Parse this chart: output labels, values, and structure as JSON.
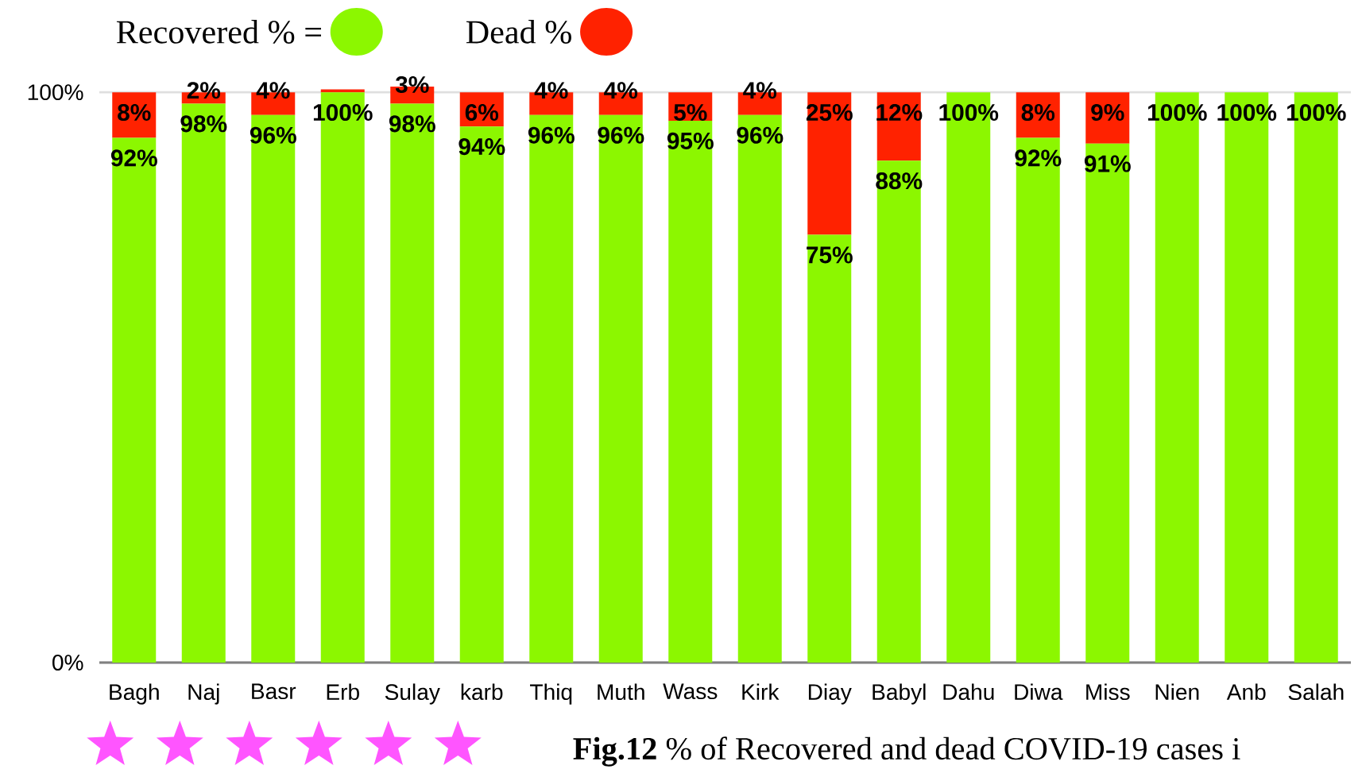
{
  "chart_data": {
    "type": "bar",
    "stacked": true,
    "categories": [
      "Bagh",
      "Naj",
      "Basr",
      "Erb",
      "Sulay",
      "karb",
      "Thiq",
      "Muth",
      "Wass",
      "Kirk",
      "Diay",
      "Babyl",
      "Dahu",
      "Diwa",
      "Miss",
      "Nien",
      "Anb",
      "Salah"
    ],
    "series": [
      {
        "name": "Recovered % =",
        "color": "#8cf700",
        "values": [
          92,
          98,
          96,
          100,
          98,
          94,
          96,
          96,
          95,
          96,
          75,
          88,
          100,
          92,
          91,
          100,
          100,
          100
        ],
        "value_labels": [
          "92%",
          "98%",
          "96%",
          "100%",
          "98%",
          "94%",
          "96%",
          "96%",
          "95%",
          "96%",
          "75%",
          "88%",
          "100%",
          "92%",
          "91%",
          "100%",
          "100%",
          "100%"
        ]
      },
      {
        "name": "Dead %",
        "color": "#ff2200",
        "values": [
          8,
          2,
          4,
          0.5,
          3,
          6,
          4,
          4,
          5,
          4,
          25,
          12,
          0,
          8,
          9,
          0,
          0,
          0
        ],
        "value_labels": [
          "8%",
          "2%",
          "4%",
          null,
          "3%",
          "6%",
          "4%",
          "4%",
          "5%",
          "4%",
          "25%",
          "12%",
          null,
          "8%",
          "9%",
          null,
          null,
          null
        ]
      }
    ],
    "ylim": [
      0,
      101
    ],
    "yticks": [
      {
        "value": 0,
        "label": "0%"
      },
      {
        "value": 100,
        "label": "100%"
      }
    ],
    "grid": "y",
    "legend": "top left",
    "annotations": [
      "**Fig.12** % of   Recovered and dead COVID-19 cases i"
    ]
  }
}
